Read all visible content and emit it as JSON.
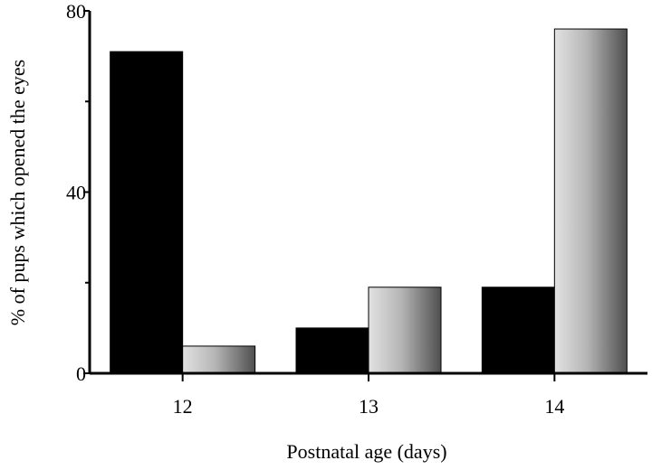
{
  "chart_data": {
    "type": "bar",
    "title": "",
    "xlabel": "Postnatal age (days)",
    "ylabel": "% of pups which opened the eyes",
    "categories": [
      "12",
      "13",
      "14"
    ],
    "ylim": [
      0,
      80
    ],
    "yticks": [
      "0",
      "40",
      "80"
    ],
    "grid": false,
    "series": [
      {
        "color": "#000000",
        "style": "solid",
        "values": [
          71,
          10,
          19
        ]
      },
      {
        "color": "#9a9a9a",
        "style": "gradient-light-to-dark",
        "values": [
          6,
          19,
          76
        ]
      }
    ]
  }
}
